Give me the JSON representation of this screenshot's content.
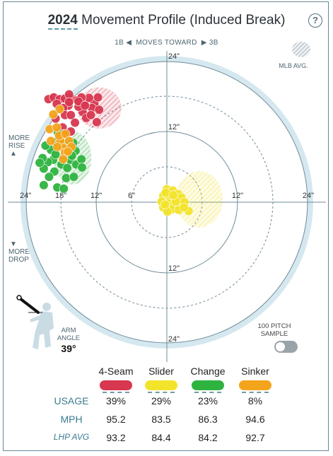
{
  "header": {
    "year": "2024",
    "title_rest": "Movement Profile (Induced Break)",
    "help_label": "?"
  },
  "moves_toward": {
    "left": "1B",
    "middle": "MOVES TOWARD",
    "right": "3B"
  },
  "side_labels": {
    "rise": [
      "MORE",
      "RISE"
    ],
    "drop": [
      "MORE",
      "DROP"
    ]
  },
  "mlb_avg_label": "MLB AVG.",
  "toggle": {
    "label": [
      "100 PITCH",
      "SAMPLE"
    ],
    "on": false
  },
  "arm": {
    "label": [
      "ARM",
      "ANGLE"
    ],
    "value": "39°",
    "degrees": 39
  },
  "chart_data": {
    "type": "scatter",
    "title": "2024 Movement Profile (Induced Break)",
    "xlabel": "",
    "ylabel": "",
    "x_tick_labels": [
      "24\"",
      "18\"",
      "12\"",
      "6\"",
      "12\"",
      "24\""
    ],
    "y_tick_labels": [
      "24\"",
      "12\"",
      "12\"",
      "24\""
    ],
    "xlim": [
      -24,
      24
    ],
    "ylim": [
      -24,
      24
    ],
    "units": "inches",
    "legend": "bottom",
    "colors": {
      "4-Seam": "#d7374f",
      "Slider": "#f2e32b",
      "Change": "#2fb33f",
      "Sinker": "#f3a41c",
      "grid": "#6f8b98",
      "outer_ring": "#d5e8ef"
    },
    "mlb_averages": [
      {
        "pitch": "4-Seam",
        "x": -11.5,
        "y": 16,
        "rx": 3.8,
        "ry": 3.5
      },
      {
        "pitch": "Change",
        "x": -16,
        "y": 7.5,
        "rx": 3.2,
        "ry": 4.5
      },
      {
        "pitch": "Slider",
        "x": 5.5,
        "y": 0.5,
        "rx": 4,
        "ry": 4.8
      }
    ],
    "series": [
      {
        "name": "4-Seam",
        "points": [
          [
            -20.1,
            17.5
          ],
          [
            -19.2,
            17.8
          ],
          [
            -18.2,
            17.5
          ],
          [
            -17.3,
            17.6
          ],
          [
            -16.3,
            17.7
          ],
          [
            -15.2,
            17.3
          ],
          [
            -14,
            16.8
          ],
          [
            -12.3,
            16.7
          ],
          [
            -13.2,
            17.7
          ],
          [
            -11.7,
            17.8
          ],
          [
            -14.5,
            17.8
          ],
          [
            -16.6,
            18.3
          ],
          [
            -12.7,
            16
          ],
          [
            -14.3,
            15.3
          ],
          [
            -15,
            16.2
          ],
          [
            -16.7,
            16.4
          ],
          [
            -17.6,
            16
          ],
          [
            -18.7,
            16.7
          ],
          [
            -17.3,
            14.8
          ],
          [
            -16.3,
            14.8
          ],
          [
            -15.6,
            13.5
          ],
          [
            -13.7,
            14.3
          ],
          [
            -12.9,
            14.8
          ],
          [
            -11.5,
            15.7
          ],
          [
            -11.9,
            13.6
          ],
          [
            -18.9,
            14.2
          ],
          [
            -17.7,
            12.7
          ],
          [
            -16.3,
            12
          ],
          [
            -17.5,
            11.6
          ],
          [
            -15,
            17.1
          ],
          [
            -16.6,
            17
          ],
          [
            -13.9,
            16.4
          ]
        ]
      },
      {
        "name": "Change",
        "points": [
          [
            -18.5,
            11.8
          ],
          [
            -18.9,
            10.2
          ],
          [
            -19.7,
            8.9
          ],
          [
            -20.6,
            9.6
          ],
          [
            -17.4,
            9.9
          ],
          [
            -15.9,
            10.1
          ],
          [
            -16.7,
            8.9
          ],
          [
            -15.5,
            8.7
          ],
          [
            -19.3,
            7.2
          ],
          [
            -20.2,
            6.8
          ],
          [
            -21.1,
            7.5
          ],
          [
            -17.7,
            7.4
          ],
          [
            -16.4,
            7.2
          ],
          [
            -17.9,
            6.4
          ],
          [
            -15.4,
            6.4
          ],
          [
            -14.5,
            7.3
          ],
          [
            -16.9,
            5.8
          ],
          [
            -19.1,
            5.2
          ],
          [
            -20.9,
            5.7
          ],
          [
            -21.6,
            6.7
          ],
          [
            -20,
            4.3
          ],
          [
            -17.1,
            4.1
          ],
          [
            -15.8,
            4.3
          ],
          [
            -14.4,
            5.9
          ],
          [
            -18.6,
            2.5
          ],
          [
            -17.5,
            2.3
          ],
          [
            -18.9,
            8.1
          ],
          [
            -16.1,
            7.9
          ],
          [
            -20.9,
            2.9
          ]
        ]
      },
      {
        "name": "Sinker",
        "points": [
          [
            -18.2,
            15.8
          ],
          [
            -19.3,
            14.9
          ],
          [
            -19.9,
            12.4
          ],
          [
            -18.7,
            12.7
          ],
          [
            -18.1,
            10.4
          ],
          [
            -19.7,
            10.4
          ],
          [
            -18.3,
            11.3
          ],
          [
            -17.2,
            11.6
          ],
          [
            -16.6,
            10.4
          ],
          [
            -17.6,
            9.2
          ],
          [
            -16.2,
            9.4
          ],
          [
            -17.3,
            8.4
          ],
          [
            -18.6,
            9.4
          ],
          [
            -17.6,
            7.3
          ],
          [
            -16.8,
            8.6
          ]
        ]
      },
      {
        "name": "Slider",
        "points": [
          [
            0,
            2.2
          ],
          [
            1,
            2
          ],
          [
            1.9,
            1.4
          ],
          [
            -0.6,
            1.1
          ],
          [
            0.5,
            0.9
          ],
          [
            1.5,
            0.5
          ],
          [
            2.5,
            0.8
          ],
          [
            -0.9,
            0.1
          ],
          [
            0.3,
            -0.2
          ],
          [
            1.2,
            -0.4
          ],
          [
            2.2,
            -0.5
          ],
          [
            3,
            0
          ],
          [
            -0.6,
            -0.9
          ],
          [
            0.9,
            -1.2
          ],
          [
            2,
            -1.3
          ],
          [
            0.1,
            -1.6
          ],
          [
            -0.3,
            -0.4
          ],
          [
            1.5,
            0.1
          ],
          [
            3.7,
            -1.5
          ],
          [
            2.9,
            -0.9
          ],
          [
            -0.2,
            1.6
          ],
          [
            1.1,
            1.2
          ]
        ]
      }
    ],
    "table": {
      "columns": [
        "4-Seam",
        "Slider",
        "Change",
        "Sinker"
      ],
      "rows": [
        {
          "label": "USAGE",
          "values": [
            "39%",
            "29%",
            "23%",
            "8%"
          ]
        },
        {
          "label": "MPH",
          "values": [
            "95.2",
            "83.5",
            "86.3",
            "94.6"
          ]
        },
        {
          "label": "LHP AVG",
          "values": [
            "93.2",
            "84.4",
            "84.2",
            "92.7"
          ]
        }
      ]
    }
  }
}
